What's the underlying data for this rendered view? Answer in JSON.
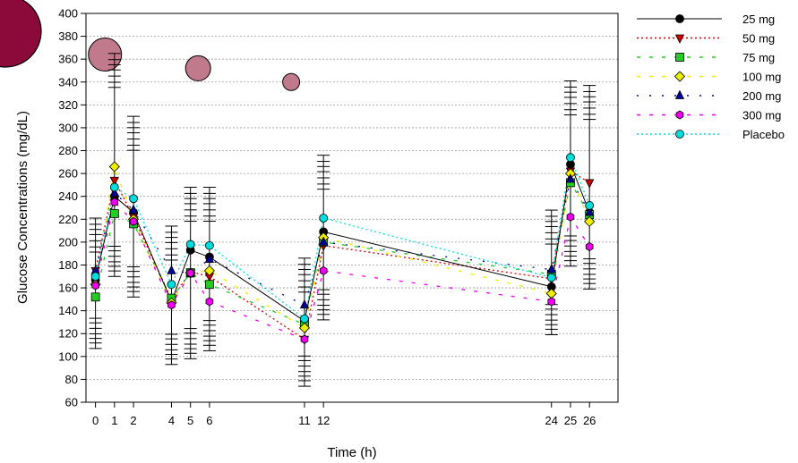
{
  "chart_data": {
    "type": "line",
    "xlabel": "Time (h)",
    "ylabel": "Glucose Concentrations (mg/dL)",
    "ylim": [
      60,
      400
    ],
    "yticks": [
      60,
      80,
      100,
      120,
      140,
      160,
      180,
      200,
      220,
      240,
      260,
      280,
      300,
      320,
      340,
      360,
      380,
      400
    ],
    "xticks": [
      0,
      1,
      2,
      4,
      5,
      6,
      11,
      12,
      24,
      25,
      26
    ],
    "x": [
      0,
      1,
      2,
      4,
      5,
      6,
      11,
      12,
      24,
      25,
      26
    ],
    "grid": "horizontal dotted",
    "legend_position": "right",
    "series": [
      {
        "name": "25 mg",
        "color": "#000000",
        "marker": "circle",
        "dash": "solid",
        "values": [
          167,
          240,
          226,
          148,
          193,
          187,
          131,
          209,
          161,
          268,
          226
        ]
      },
      {
        "name": "50 mg",
        "color": "#cc0000",
        "marker": "triangle-down",
        "dash": "dotted",
        "values": [
          175,
          254,
          222,
          150,
          174,
          170,
          115,
          197,
          168,
          262,
          252
        ]
      },
      {
        "name": "75 mg",
        "color": "#22cc22",
        "marker": "square",
        "dash": "dashed",
        "values": [
          152,
          225,
          216,
          151,
          173,
          163,
          128,
          200,
          172,
          252,
          224
        ]
      },
      {
        "name": "100 mg",
        "color": "#eeee00",
        "marker": "diamond",
        "dash": "dashed",
        "values": [
          163,
          266,
          220,
          147,
          173,
          175,
          125,
          204,
          155,
          260,
          218
        ]
      },
      {
        "name": "200 mg",
        "color": "#000099",
        "marker": "triangle-up",
        "dash": "dashdot",
        "values": [
          175,
          243,
          228,
          175,
          173,
          185,
          145,
          200,
          176,
          255,
          226
        ]
      },
      {
        "name": "300 mg",
        "color": "#ee00ee",
        "marker": "hexagon",
        "dash": "dashed",
        "values": [
          162,
          235,
          218,
          145,
          173,
          148,
          115,
          175,
          148,
          222,
          196
        ]
      },
      {
        "name": "Placebo",
        "color": "#00dddd",
        "marker": "circle",
        "dash": "dotted",
        "values": [
          170,
          248,
          238,
          163,
          198,
          197,
          133,
          221,
          169,
          274,
          232
        ]
      }
    ],
    "errors_upper": [
      221,
      365,
      310,
      214,
      248,
      248,
      186,
      276,
      228,
      341,
      337
    ],
    "errors_lower": [
      107,
      170,
      152,
      93,
      98,
      105,
      74,
      132,
      119,
      179,
      159
    ],
    "bubbles": [
      {
        "x": 0.5,
        "y": 364,
        "size": 3
      },
      {
        "x": 5.4,
        "y": 352,
        "size": 2
      },
      {
        "x": 10.3,
        "y": 340,
        "size": 1
      }
    ],
    "bubble_color": "#c07a8c",
    "corner_bubble_color": "#8b0a3a"
  }
}
